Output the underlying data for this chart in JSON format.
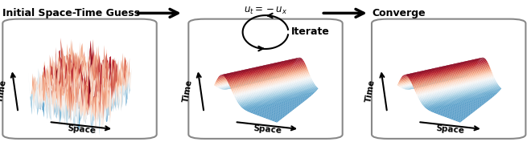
{
  "fig_width": 6.6,
  "fig_height": 1.82,
  "dpi": 100,
  "bg_color": "#ffffff",
  "colormap": "RdBu_r",
  "title_top_left": "Initial Space-Time Guess",
  "title_top_center": "Iterate",
  "title_top_right": "Converge",
  "equation": "$u_t = -u_x$",
  "noise_amplitude": 1.2,
  "panel_edge_color": "#888888",
  "panel1_elev": 30,
  "panel1_azim": -60,
  "panel23_elev": 28,
  "panel23_azim": -55,
  "label_fontsize": 7.5,
  "title_fontsize": 9.0,
  "eq_fontsize": 8.5
}
